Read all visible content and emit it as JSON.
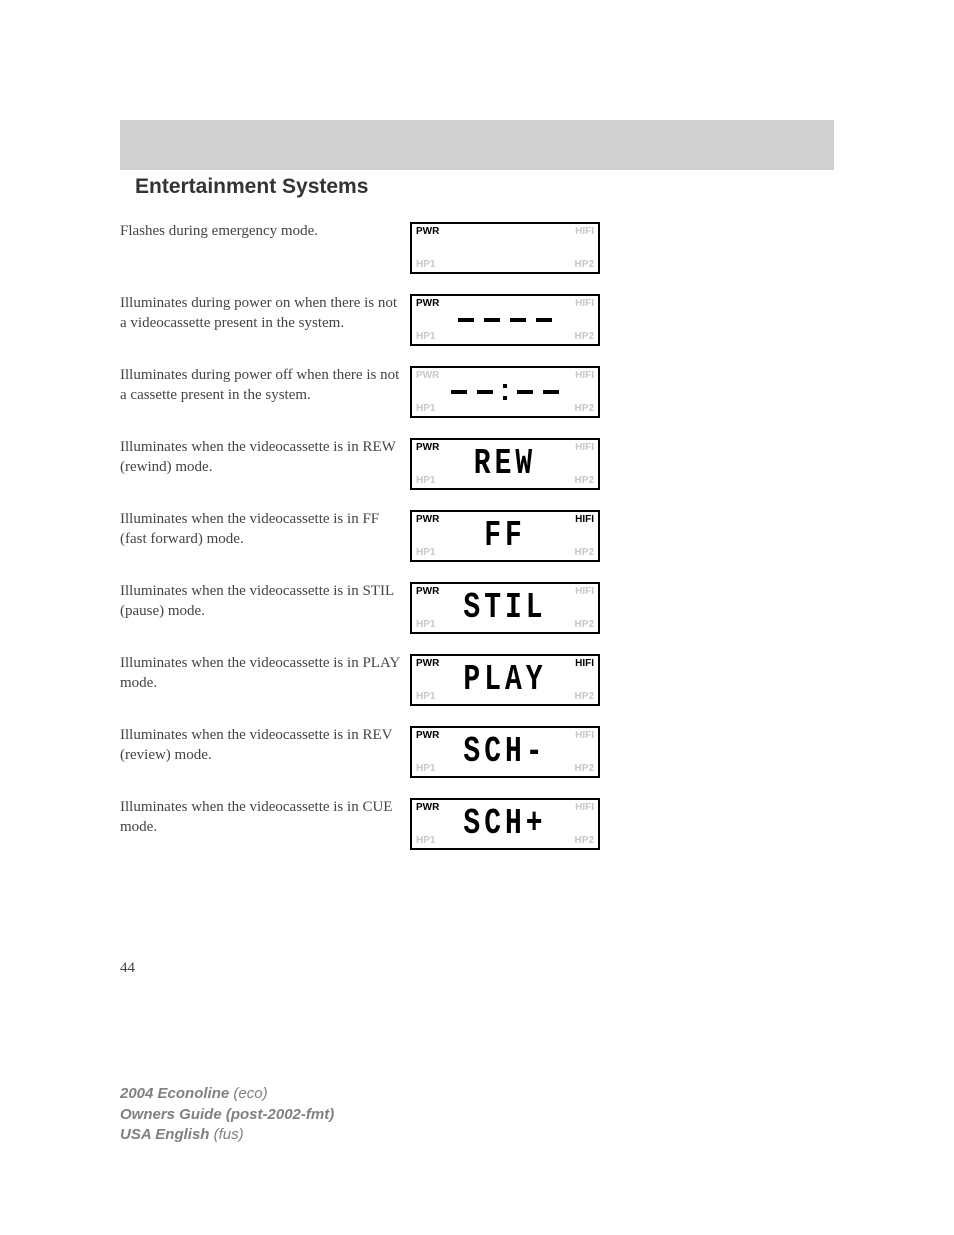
{
  "header": {
    "title": "Entertainment Systems"
  },
  "rows": [
    {
      "desc": "Flashes during emergency mode.",
      "pwr_solid": true,
      "hifi_solid": false,
      "display": "blank"
    },
    {
      "desc": "Illuminates during power on when there is not a videocassette present in the system.",
      "pwr_solid": true,
      "hifi_solid": false,
      "display": "dashes"
    },
    {
      "desc": "Illuminates during power off when there is not a cassette present in the system.",
      "pwr_solid": false,
      "hifi_solid": false,
      "display": "clock_dashes"
    },
    {
      "desc": "Illuminates when the videocassette is in REW (rewind) mode.",
      "pwr_solid": true,
      "hifi_solid": false,
      "display": "text",
      "text": "REW"
    },
    {
      "desc": "Illuminates when the videocassette is in FF (fast forward) mode.",
      "pwr_solid": true,
      "hifi_solid": true,
      "display": "text",
      "text": "FF"
    },
    {
      "desc": "Illuminates when the videocassette is in STIL (pause) mode.",
      "pwr_solid": true,
      "hifi_solid": false,
      "display": "text",
      "text": "STIL"
    },
    {
      "desc": "Illuminates when the videocassette is in PLAY mode.",
      "pwr_solid": true,
      "hifi_solid": true,
      "display": "text",
      "text": "PLAY"
    },
    {
      "desc": "Illuminates when the videocassette is in REV (review) mode.",
      "pwr_solid": true,
      "hifi_solid": false,
      "display": "text",
      "text": "SCH-"
    },
    {
      "desc": "Illuminates when the videocassette is in CUE mode.",
      "pwr_solid": true,
      "hifi_solid": false,
      "display": "text",
      "text": "SCH+"
    }
  ],
  "labels": {
    "pwr": "PWR",
    "hifi": "HIFI",
    "hp1": "HP1",
    "hp2": "HP2"
  },
  "page_number": "44",
  "footer": {
    "l1a": "2004 Econoline ",
    "l1b": "(eco)",
    "l2": "Owners Guide (post-2002-fmt)",
    "l3a": "USA English ",
    "l3b": "(fus)"
  },
  "colors": {
    "ghost": "#c8c8c8",
    "solid": "#000000",
    "header_bar": "#d0d0d0",
    "text": "#444444",
    "footer": "#808080"
  }
}
